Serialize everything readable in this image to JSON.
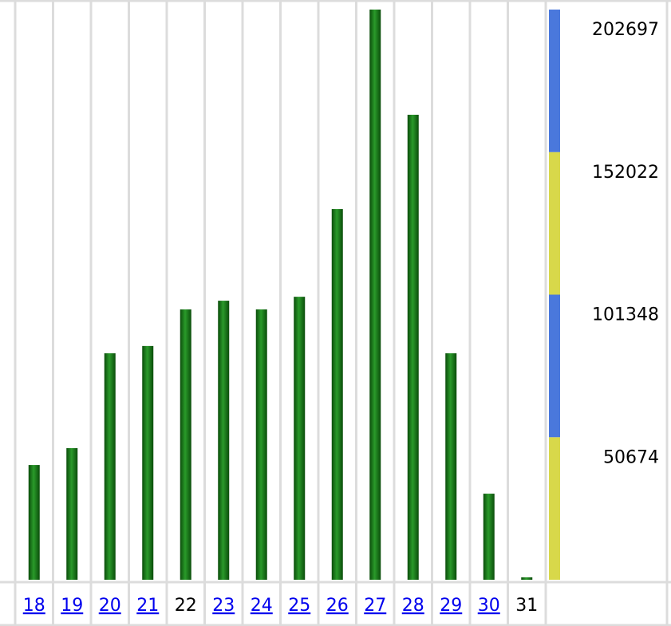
{
  "chart_data": {
    "type": "bar",
    "categories": [
      "18",
      "19",
      "20",
      "21",
      "22",
      "23",
      "24",
      "25",
      "26",
      "27",
      "28",
      "29",
      "30",
      "31"
    ],
    "category_links": [
      true,
      true,
      true,
      true,
      false,
      true,
      true,
      true,
      true,
      true,
      true,
      true,
      true,
      false
    ],
    "values": [
      40800,
      46800,
      80500,
      83100,
      96100,
      99200,
      96100,
      100600,
      131800,
      202697,
      165300,
      80500,
      30600,
      850
    ],
    "color": "#1a7a1a",
    "ylim": [
      0,
      202697
    ],
    "yticks": [
      50674,
      101348,
      152022,
      202697
    ],
    "scale_colors": [
      "#d8d84a",
      "#4a78dc"
    ]
  }
}
